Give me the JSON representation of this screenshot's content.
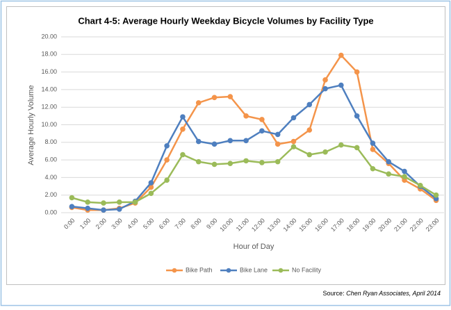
{
  "chart_data": {
    "type": "line",
    "title": "Chart 4-5: Average Hourly Weekday Bicycle Volumes by Facility Type",
    "x_label": "Hour of Day",
    "y_label": "Average Hourly Volume",
    "source_label": "Source:",
    "source": "Chen Ryan Associates, April 2014",
    "categories": [
      "0:00",
      "1:00",
      "2:00",
      "3:00",
      "4:00",
      "5:00",
      "6:00",
      "7:00",
      "8:00",
      "9:00",
      "10:00",
      "11:00",
      "12:00",
      "13:00",
      "14:00",
      "15:00",
      "16:00",
      "17:00",
      "18:00",
      "19:00",
      "20:00",
      "21:00",
      "22:00",
      "23:00"
    ],
    "series": [
      {
        "name": "Bike Path",
        "color": "#f4944a",
        "values": [
          0.6,
          0.3,
          0.3,
          0.5,
          1.1,
          2.9,
          6.0,
          9.5,
          12.5,
          13.1,
          13.2,
          11.0,
          10.6,
          7.8,
          8.1,
          9.4,
          15.1,
          17.9,
          16.0,
          7.2,
          5.6,
          3.7,
          2.7,
          1.4
        ]
      },
      {
        "name": "Bike Lane",
        "color": "#4e7fbf",
        "values": [
          0.7,
          0.5,
          0.3,
          0.4,
          1.3,
          3.4,
          7.6,
          10.9,
          8.1,
          7.8,
          8.2,
          8.2,
          9.3,
          8.9,
          10.8,
          12.3,
          14.1,
          14.5,
          11.0,
          7.9,
          5.8,
          4.7,
          3.0,
          1.6
        ]
      },
      {
        "name": "No Facility",
        "color": "#9bbb59",
        "values": [
          1.7,
          1.2,
          1.1,
          1.2,
          1.2,
          2.2,
          3.7,
          6.6,
          5.8,
          5.5,
          5.6,
          5.9,
          5.7,
          5.8,
          7.5,
          6.6,
          6.9,
          7.7,
          7.4,
          5.0,
          4.4,
          4.1,
          3.1,
          2.0
        ]
      }
    ],
    "ylim": [
      0,
      20
    ],
    "yticks": [
      {
        "value": 0,
        "label": "0.00"
      },
      {
        "value": 2,
        "label": "2.00"
      },
      {
        "value": 4,
        "label": "4.00"
      },
      {
        "value": 6,
        "label": "6.00"
      },
      {
        "value": 8,
        "label": "8.00"
      },
      {
        "value": 10,
        "label": "10.00"
      },
      {
        "value": 12,
        "label": "12.00"
      },
      {
        "value": 14,
        "label": "14.00"
      },
      {
        "value": 16,
        "label": "16.00"
      },
      {
        "value": 18,
        "label": "18.00"
      },
      {
        "value": 20,
        "label": "20.00"
      }
    ],
    "grid": true,
    "legend": "bottom"
  }
}
